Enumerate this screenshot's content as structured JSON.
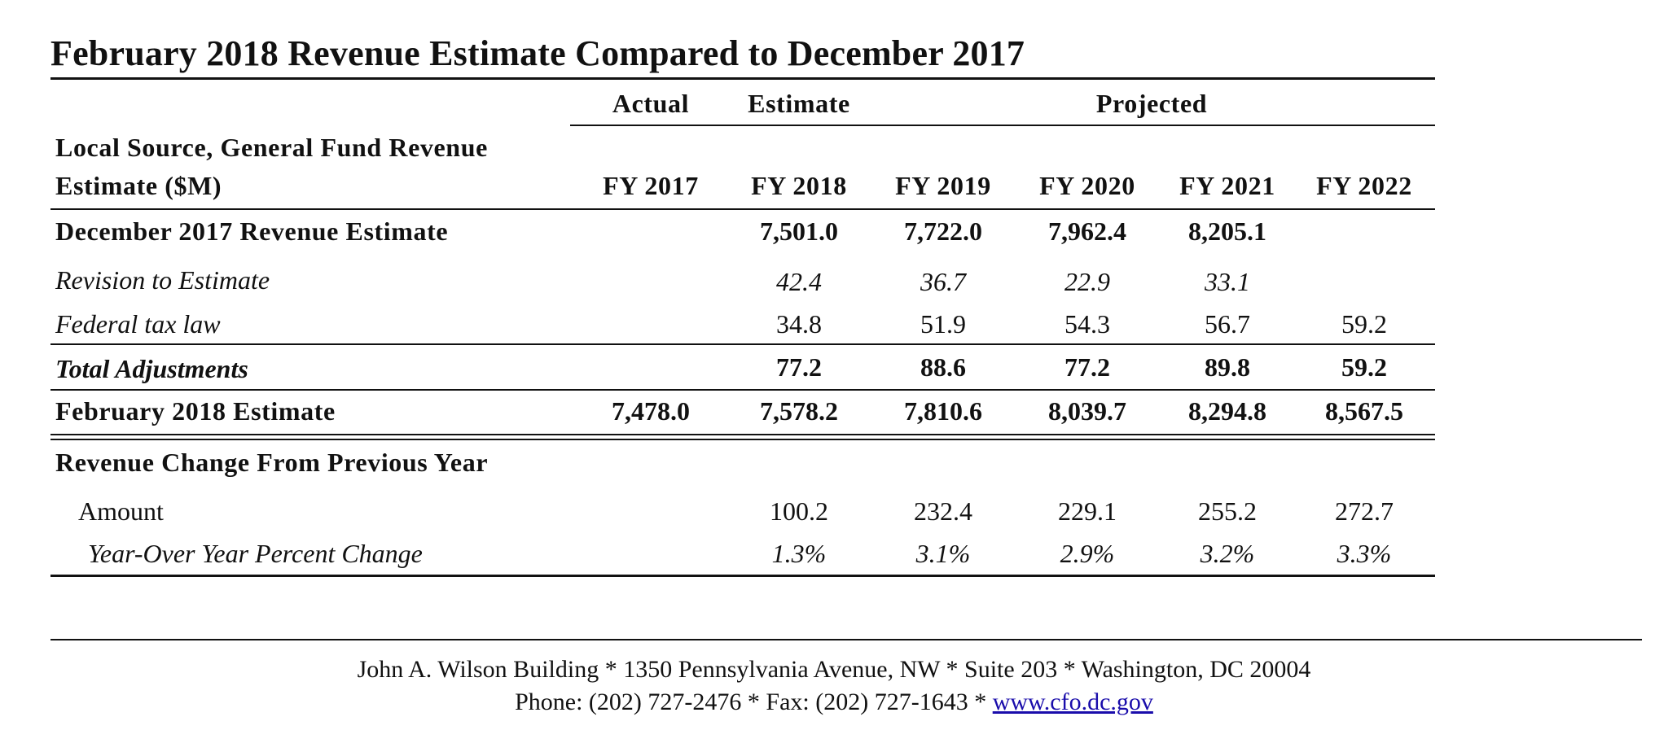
{
  "title": "February 2018 Revenue Estimate Compared to December 2017",
  "header": {
    "group_actual": "Actual",
    "group_estimate": "Estimate",
    "group_projected": "Projected",
    "row_label_line1": "Local Source, General Fund Revenue",
    "row_label_line2": "Estimate ($M)",
    "years": [
      "FY 2017",
      "FY 2018",
      "FY 2019",
      "FY 2020",
      "FY 2021",
      "FY 2022"
    ]
  },
  "rows": [
    {
      "label": "December 2017 Revenue Estimate",
      "values": [
        "",
        "7,501.0",
        "7,722.0",
        "7,962.4",
        "8,205.1",
        ""
      ]
    },
    {
      "label": "Revision to Estimate",
      "values": [
        "",
        "42.4",
        "36.7",
        "22.9",
        "33.1",
        ""
      ]
    },
    {
      "label": "Federal tax law",
      "values": [
        "",
        "34.8",
        "51.9",
        "54.3",
        "56.7",
        "59.2"
      ]
    },
    {
      "label": "Total Adjustments",
      "values": [
        "",
        "77.2",
        "88.6",
        "77.2",
        "89.8",
        "59.2"
      ]
    },
    {
      "label": "February 2018 Estimate",
      "values": [
        "7,478.0",
        "7,578.2",
        "7,810.6",
        "8,039.7",
        "8,294.8",
        "8,567.5"
      ]
    },
    {
      "label": "Revenue Change From Previous Year",
      "values": [
        "",
        "",
        "",
        "",
        "",
        ""
      ]
    },
    {
      "label": "Amount",
      "values": [
        "",
        "100.2",
        "232.4",
        "229.1",
        "255.2",
        "272.7"
      ]
    },
    {
      "label": "Year-Over Year Percent Change",
      "values": [
        "",
        "1.3%",
        "3.1%",
        "2.9%",
        "3.2%",
        "3.3%"
      ]
    }
  ],
  "footer": {
    "line1": "John A. Wilson Building * 1350 Pennsylvania Avenue, NW * Suite 203 * Washington, DC 20004",
    "line2_prefix": "Phone: (202) 727-2476 * Fax: (202) 727-1643 * ",
    "link": "www.cfo.dc.gov"
  }
}
